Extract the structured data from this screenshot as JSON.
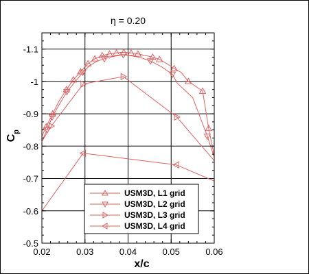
{
  "chart_data": {
    "type": "line",
    "title": "η = 0.20",
    "xlabel": "x/c",
    "ylabel": "Cp",
    "ylabel_main": "C",
    "ylabel_sub": "p",
    "xlim": [
      0.02,
      0.06
    ],
    "ylim": [
      -0.5,
      -1.15
    ],
    "y_inverted": true,
    "xticks": [
      0.02,
      0.03,
      0.04,
      0.05,
      0.06
    ],
    "xtick_labels": [
      "0.02",
      "0.03",
      "0.04",
      "0.05",
      "0.06"
    ],
    "yticks": [
      -0.5,
      -0.6,
      -0.7,
      -0.8,
      -0.9,
      -1.0,
      -1.1
    ],
    "ytick_labels": [
      "-0.5",
      "-0.6",
      "-0.7",
      "-0.8",
      "-0.9",
      "-1",
      "-1.1"
    ],
    "grid": true,
    "legend_position": "bottom-center",
    "line_color": "#e06060",
    "series": [
      {
        "name": "USM3D, L1 grid",
        "marker": "triangle-up",
        "x": [
          0.02,
          0.021,
          0.0225,
          0.024,
          0.0257,
          0.0273,
          0.029,
          0.0307,
          0.0323,
          0.034,
          0.0357,
          0.0373,
          0.039,
          0.0407,
          0.0423,
          0.044,
          0.0457,
          0.0473,
          0.049,
          0.0507,
          0.0523,
          0.054,
          0.0573,
          0.0587,
          0.06
        ],
        "y": [
          -0.83,
          -0.86,
          -0.9,
          -0.94,
          -0.975,
          -1.005,
          -1.03,
          -1.055,
          -1.07,
          -1.08,
          -1.085,
          -1.088,
          -1.09,
          -1.088,
          -1.085,
          -1.08,
          -1.075,
          -1.068,
          -1.055,
          -1.04,
          -1.028,
          -1.0,
          -0.97,
          -0.855,
          -0.77
        ]
      },
      {
        "name": "USM3D, L2 grid",
        "marker": "triangle-down",
        "x": [
          0.02,
          0.0212,
          0.0224,
          0.0241,
          0.0258,
          0.0278,
          0.0295,
          0.0312,
          0.0329,
          0.0345,
          0.0362,
          0.0378,
          0.0389,
          0.0404,
          0.0428,
          0.0452,
          0.0478,
          0.0503,
          0.0514,
          0.055,
          0.0584,
          0.06
        ],
        "y": [
          -0.815,
          -0.85,
          -0.89,
          -0.93,
          -0.968,
          -1.0,
          -1.028,
          -1.05,
          -1.063,
          -1.07,
          -1.076,
          -1.08,
          -1.082,
          -1.08,
          -1.074,
          -1.063,
          -1.045,
          -1.022,
          -0.995,
          -0.95,
          -0.83,
          -0.765
        ]
      },
      {
        "name": "USM3D, L3 grid",
        "marker": "triangle-right",
        "x": [
          0.02,
          0.0222,
          0.0296,
          0.0389,
          0.0513,
          0.06
        ],
        "y": [
          -0.815,
          -0.862,
          -0.992,
          -1.015,
          -0.89,
          -0.755
        ]
      },
      {
        "name": "USM3D, L4 grid",
        "marker": "triangle-left",
        "x": [
          0.02,
          0.0296,
          0.0512,
          0.06
        ],
        "y": [
          -0.6,
          -0.778,
          -0.742,
          -0.692
        ]
      }
    ],
    "markers_shown": [
      [
        0.021,
        0.0225,
        0.0257,
        0.0273,
        0.029,
        0.0307,
        0.0323,
        0.034,
        0.0357,
        0.0373,
        0.039,
        0.0407,
        0.0423,
        0.0457,
        0.0473,
        0.0507,
        0.054,
        0.0573,
        0.0587
      ],
      [
        0.0212,
        0.0224,
        0.0258,
        0.0295,
        0.0345,
        0.0389,
        0.0452,
        0.0503,
        0.0584
      ],
      [
        0.0222,
        0.0296,
        0.0389,
        0.0513
      ],
      [
        0.0296,
        0.0512
      ]
    ]
  }
}
